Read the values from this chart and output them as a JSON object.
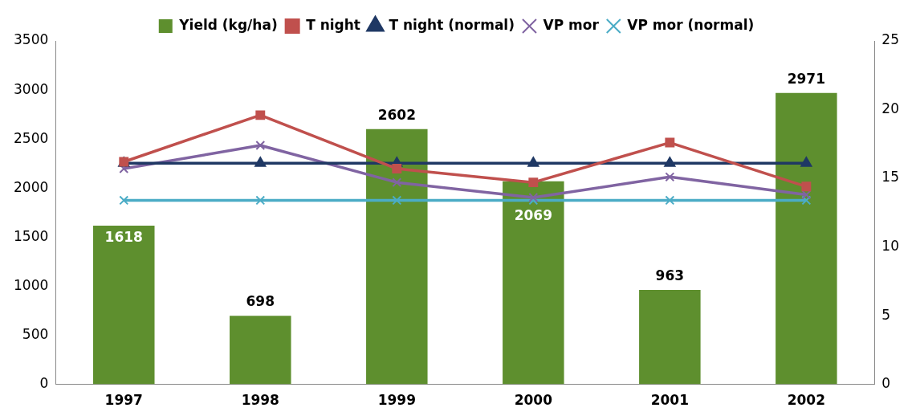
{
  "chart_data": {
    "type": "bar",
    "categories": [
      "1997",
      "1998",
      "1999",
      "2000",
      "2001",
      "2002"
    ],
    "series": [
      {
        "name": "Yield (kg/ha)",
        "color": "#5e8f2e",
        "values": [
          1618,
          698,
          2602,
          2069,
          963,
          2971
        ],
        "value_labels": [
          "1618",
          "698",
          "2602",
          "2069",
          "963",
          "2971"
        ]
      },
      {
        "name": "T night",
        "type": "line",
        "axis": "y2",
        "color": "#c0504d",
        "marker": "square",
        "values": [
          16.2,
          19.6,
          15.7,
          14.7,
          17.6,
          14.4
        ]
      },
      {
        "name": "T night (normal)",
        "type": "line",
        "axis": "y2",
        "color": "#1f3864",
        "marker": "triangle",
        "values": [
          16.1,
          16.1,
          16.1,
          16.1,
          16.1,
          16.1
        ]
      },
      {
        "name": "VP mor",
        "type": "line",
        "axis": "y2",
        "color": "#8064a2",
        "marker": "cross",
        "values": [
          15.7,
          17.4,
          14.7,
          13.6,
          15.1,
          13.8
        ]
      },
      {
        "name": "VP mor (normal)",
        "type": "line",
        "axis": "y2",
        "color": "#4bacc6",
        "marker": "cross",
        "values": [
          13.4,
          13.4,
          13.4,
          13.4,
          13.4,
          13.4
        ]
      }
    ],
    "ylim": [
      0,
      3500
    ],
    "yticks": [
      0,
      500,
      1000,
      1500,
      2000,
      2500,
      3000,
      3500
    ],
    "y2lim": [
      0,
      25
    ],
    "y2ticks": [
      0,
      5,
      10,
      15,
      20,
      25
    ],
    "grid": false,
    "legend": "top"
  }
}
